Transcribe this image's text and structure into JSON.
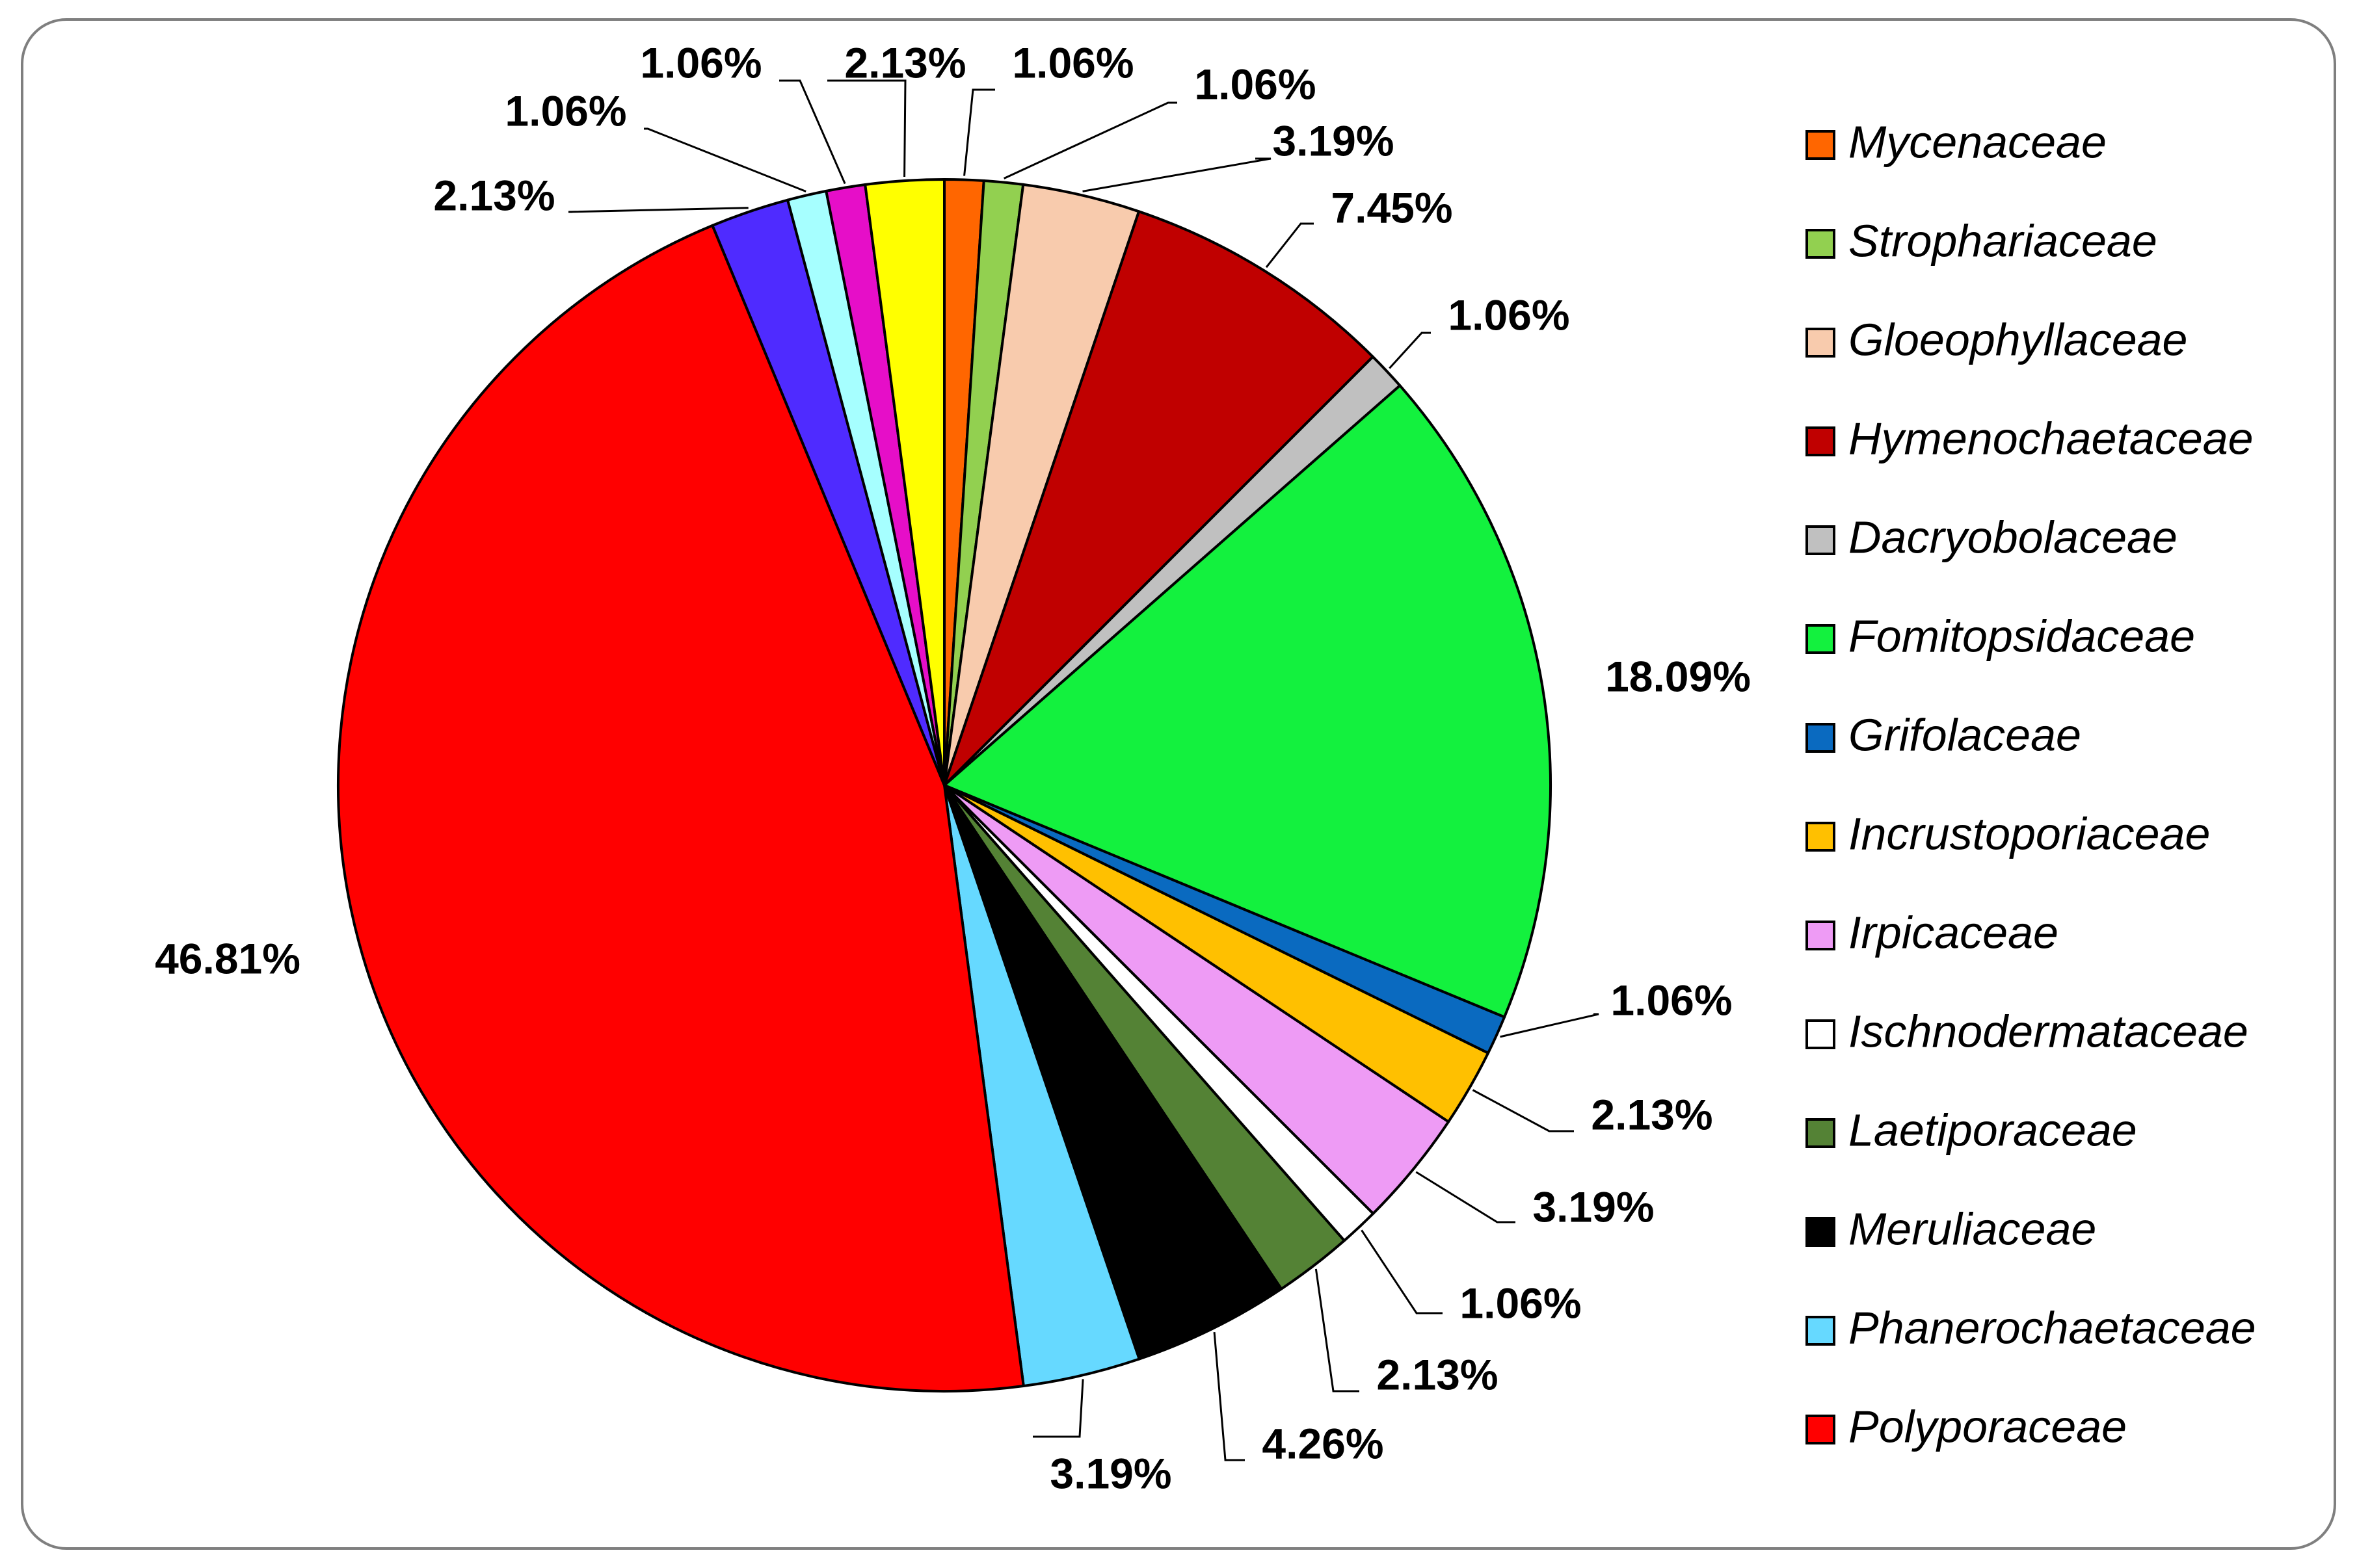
{
  "chart_data": {
    "type": "pie",
    "title": "",
    "legend_position": "right",
    "slices": [
      {
        "name": "Mycenaceae",
        "value": 1.06,
        "label": "1.06%",
        "color": "#FF6600"
      },
      {
        "name": "Strophariaceae",
        "value": 1.06,
        "label": "1.06%",
        "color": "#92D050"
      },
      {
        "name": "Gloeophyllaceae",
        "value": 3.19,
        "label": "3.19%",
        "color": "#F8CBAD"
      },
      {
        "name": "Hymenochaetaceae",
        "value": 7.45,
        "label": "7.45%",
        "color": "#C00000"
      },
      {
        "name": "Dacryobolaceae",
        "value": 1.06,
        "label": "1.06%",
        "color": "#C0C0C0"
      },
      {
        "name": "Fomitopsidaceae",
        "value": 18.09,
        "label": "18.09%",
        "color": "#13F13E"
      },
      {
        "name": "Grifolaceae",
        "value": 1.06,
        "label": "1.06%",
        "color": "#0A6AC0"
      },
      {
        "name": "Incrustoporiaceae",
        "value": 2.13,
        "label": "2.13%",
        "color": "#FFC000"
      },
      {
        "name": "Irpicaceae",
        "value": 3.19,
        "label": "3.19%",
        "color": "#EE9BF5"
      },
      {
        "name": "Ischnodermataceae",
        "value": 1.06,
        "label": "1.06%",
        "color": "#FFFFFF"
      },
      {
        "name": "Laetiporaceae",
        "value": 2.13,
        "label": "2.13%",
        "color": "#548235"
      },
      {
        "name": "Meruliaceae",
        "value": 4.26,
        "label": "4.26%",
        "color": "#000000"
      },
      {
        "name": "Phanerochaetaceae",
        "value": 3.19,
        "label": "3.19%",
        "color": "#66D9FF"
      },
      {
        "name": "Polyporaceae",
        "value": 46.81,
        "label": "46.81%",
        "color": "#FF0000"
      },
      {
        "name": "",
        "value": 2.13,
        "label": "2.13%",
        "color": "#4F2BFF"
      },
      {
        "name": "",
        "value": 1.06,
        "label": "1.06%",
        "color": "#A6FFFF"
      },
      {
        "name": "",
        "value": 1.06,
        "label": "1.06%",
        "color": "#E60EC8"
      },
      {
        "name": "",
        "value": 2.13,
        "label": "2.13%",
        "color": "#FFFF00"
      }
    ]
  }
}
